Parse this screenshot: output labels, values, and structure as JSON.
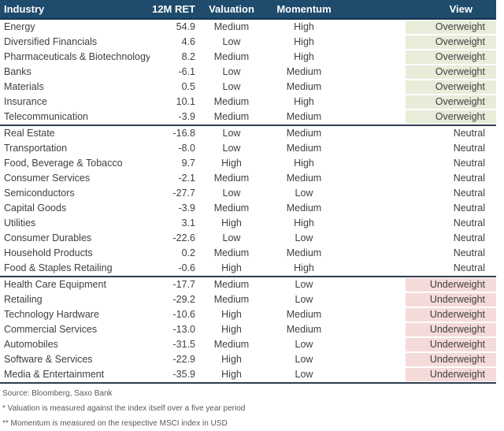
{
  "chart_data": {
    "type": "table",
    "columns": [
      "Industry",
      "12M RET",
      "Valuation",
      "Momentum",
      "View"
    ],
    "sections": [
      {
        "view": "Overweight",
        "rows": [
          [
            "Energy",
            "54.9",
            "Medium",
            "High",
            "Overweight"
          ],
          [
            "Diversified Financials",
            "4.6",
            "Low",
            "High",
            "Overweight"
          ],
          [
            "Pharmaceuticals & Biotechnology",
            "8.2",
            "Medium",
            "High",
            "Overweight"
          ],
          [
            "Banks",
            "-6.1",
            "Low",
            "Medium",
            "Overweight"
          ],
          [
            "Materials",
            "0.5",
            "Low",
            "Medium",
            "Overweight"
          ],
          [
            "Insurance",
            "10.1",
            "Medium",
            "High",
            "Overweight"
          ],
          [
            "Telecommunication",
            "-3.9",
            "Medium",
            "Medium",
            "Overweight"
          ]
        ]
      },
      {
        "view": "Neutral",
        "rows": [
          [
            "Real Estate",
            "-16.8",
            "Low",
            "Medium",
            "Neutral"
          ],
          [
            "Transportation",
            "-8.0",
            "Low",
            "Medium",
            "Neutral"
          ],
          [
            "Food, Beverage & Tobacco",
            "9.7",
            "High",
            "High",
            "Neutral"
          ],
          [
            "Consumer Services",
            "-2.1",
            "Medium",
            "Medium",
            "Neutral"
          ],
          [
            "Semiconductors",
            "-27.7",
            "Low",
            "Low",
            "Neutral"
          ],
          [
            "Capital Goods",
            "-3.9",
            "Medium",
            "Medium",
            "Neutral"
          ],
          [
            "Utilities",
            "3.1",
            "High",
            "High",
            "Neutral"
          ],
          [
            "Consumer Durables",
            "-22.6",
            "Low",
            "Low",
            "Neutral"
          ],
          [
            "Household Products",
            "0.2",
            "Medium",
            "Medium",
            "Neutral"
          ],
          [
            "Food & Staples Retailing",
            "-0.6",
            "High",
            "High",
            "Neutral"
          ]
        ]
      },
      {
        "view": "Underweight",
        "rows": [
          [
            "Health Care Equipment",
            "-17.7",
            "Medium",
            "Low",
            "Underweight"
          ],
          [
            "Retailing",
            "-29.2",
            "Medium",
            "Low",
            "Underweight"
          ],
          [
            "Technology Hardware",
            "-10.6",
            "High",
            "Medium",
            "Underweight"
          ],
          [
            "Commercial Services",
            "-13.0",
            "High",
            "Medium",
            "Underweight"
          ],
          [
            "Automobiles",
            "-31.5",
            "Medium",
            "Low",
            "Underweight"
          ],
          [
            "Software & Services",
            "-22.9",
            "High",
            "Low",
            "Underweight"
          ],
          [
            "Media & Entertainment",
            "-35.9",
            "High",
            "Low",
            "Underweight"
          ]
        ]
      }
    ]
  },
  "footer": {
    "source": "Source: Bloomberg, Saxo Bank",
    "note_valuation": "* Valuation is measured against the index itself over a five year period",
    "note_momentum": "** Momentum is measured on the respective MSCI index in USD"
  },
  "colors": {
    "header_bg": "#1f4b6c",
    "divider": "#2e3d4d",
    "overweight_bg": "#e8edda",
    "underweight_bg": "#f4dbd9",
    "body_text": "#404040"
  }
}
